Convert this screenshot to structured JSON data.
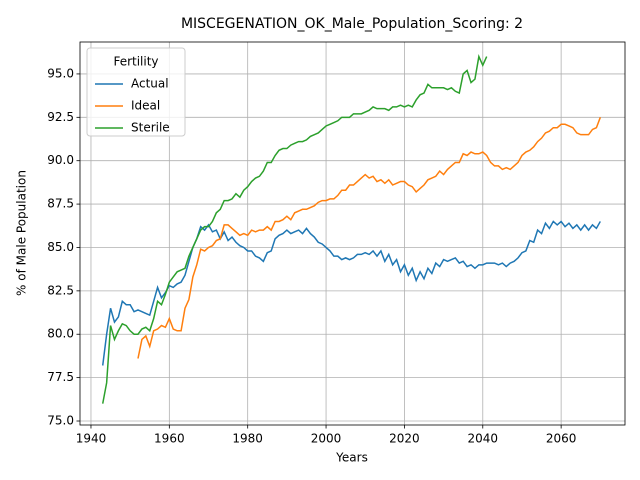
{
  "chart_data": {
    "type": "line",
    "title": "MISCEGENATION_OK_Male_Population_Scoring: 2",
    "xlabel": "Years",
    "ylabel": "% of Male Population",
    "legend_title": "Fertility",
    "legend": "upper left",
    "grid": true,
    "xlim": [
      1937.2,
      2076.3
    ],
    "ylim": [
      74.77,
      96.84
    ],
    "xticks": [
      1940,
      1960,
      1980,
      2000,
      2020,
      2040,
      2060
    ],
    "yticks": [
      {
        "value": 75,
        "label": "75.0"
      },
      {
        "value": 77.5,
        "label": "77.5"
      },
      {
        "value": 80,
        "label": "80.0"
      },
      {
        "value": 82.5,
        "label": "82.5"
      },
      {
        "value": 85,
        "label": "85.0"
      },
      {
        "value": 87.5,
        "label": "87.5"
      },
      {
        "value": 90,
        "label": "90.0"
      },
      {
        "value": 92.5,
        "label": "92.5"
      },
      {
        "value": 95,
        "label": "95.0"
      }
    ],
    "x": [
      1943,
      1944,
      1945,
      1946,
      1947,
      1948,
      1949,
      1950,
      1951,
      1952,
      1953,
      1954,
      1955,
      1956,
      1957,
      1958,
      1959,
      1960,
      1961,
      1962,
      1963,
      1964,
      1965,
      1966,
      1967,
      1968,
      1969,
      1970,
      1971,
      1972,
      1973,
      1974,
      1975,
      1976,
      1977,
      1978,
      1979,
      1980,
      1981,
      1982,
      1983,
      1984,
      1985,
      1986,
      1987,
      1988,
      1989,
      1990,
      1991,
      1992,
      1993,
      1994,
      1995,
      1996,
      1997,
      1998,
      1999,
      2000,
      2001,
      2002,
      2003,
      2004,
      2005,
      2006,
      2007,
      2008,
      2009,
      2010,
      2011,
      2012,
      2013,
      2014,
      2015,
      2016,
      2017,
      2018,
      2019,
      2020,
      2021,
      2022,
      2023,
      2024,
      2025,
      2026,
      2027,
      2028,
      2029,
      2030,
      2031,
      2032,
      2033,
      2034,
      2035,
      2036,
      2037,
      2038,
      2039,
      2040,
      2041,
      2042,
      2043,
      2044,
      2045,
      2046,
      2047,
      2048,
      2049,
      2050,
      2051,
      2052,
      2053,
      2054,
      2055,
      2056,
      2057,
      2058,
      2059,
      2060,
      2061,
      2062,
      2063,
      2064,
      2065,
      2066,
      2067,
      2068,
      2069,
      2070
    ],
    "series": [
      {
        "name": "Actual",
        "color": "#1f77b4",
        "values": [
          78.2,
          80,
          81.5,
          80.7,
          81,
          81.9,
          81.7,
          81.7,
          81.3,
          81.4,
          81.3,
          81.2,
          81.1,
          81.9,
          82.7,
          82.1,
          82.4,
          82.8,
          82.7,
          82.9,
          83.0,
          83.4,
          84.2,
          85.0,
          85.5,
          86.2,
          86.0,
          86.3,
          85.9,
          86.0,
          85.5,
          85.9,
          85.4,
          85.6,
          85.3,
          85.1,
          85.0,
          84.8,
          84.8,
          84.5,
          84.4,
          84.2,
          84.7,
          84.8,
          85.5,
          85.7,
          85.8,
          86.0,
          85.8,
          85.9,
          86.0,
          85.8,
          86.1,
          85.8,
          85.6,
          85.3,
          85.2,
          85.0,
          84.8,
          84.5,
          84.5,
          84.3,
          84.4,
          84.3,
          84.4,
          84.6,
          84.6,
          84.7,
          84.6,
          84.8,
          84.5,
          84.8,
          84.2,
          84.6,
          84.0,
          84.3,
          83.6,
          84.0,
          83.4,
          83.8,
          83.1,
          83.6,
          83.2,
          83.8,
          83.5,
          84.1,
          83.9,
          84.3,
          84.2,
          84.3,
          84.4,
          84.1,
          84.2,
          83.9,
          84.0,
          83.8,
          84.0,
          84.0,
          84.1,
          84.1,
          84.1,
          84.0,
          84.1,
          83.9,
          84.1,
          84.2,
          84.4,
          84.7,
          84.8,
          85.4,
          85.3,
          86.0,
          85.8,
          86.4,
          86.1,
          86.5,
          86.3,
          86.5,
          86.2,
          86.4,
          86.1,
          86.3,
          86.0,
          86.3,
          86.0,
          86.3,
          86.1,
          86.5
        ]
      },
      {
        "name": "Ideal",
        "color": "#ff7f0e",
        "values": [
          null,
          null,
          null,
          null,
          null,
          null,
          null,
          null,
          null,
          78.6,
          79.7,
          79.9,
          79.3,
          80.2,
          80.3,
          80.5,
          80.4,
          80.9,
          80.3,
          80.2,
          80.2,
          81.5,
          82.0,
          83.3,
          84.0,
          84.9,
          84.8,
          85.0,
          85.1,
          85.4,
          85.5,
          86.3,
          86.3,
          86.1,
          85.9,
          85.7,
          85.8,
          85.7,
          86.0,
          85.9,
          86.0,
          86.0,
          86.2,
          86.0,
          86.5,
          86.5,
          86.6,
          86.8,
          86.6,
          87.0,
          87.1,
          87.2,
          87.2,
          87.3,
          87.4,
          87.6,
          87.7,
          87.7,
          87.8,
          87.8,
          88.0,
          88.3,
          88.3,
          88.6,
          88.6,
          88.8,
          89.0,
          89.2,
          89.0,
          89.1,
          88.8,
          88.9,
          88.7,
          88.9,
          88.6,
          88.7,
          88.8,
          88.8,
          88.6,
          88.5,
          88.2,
          88.4,
          88.6,
          88.9,
          89.0,
          89.1,
          89.4,
          89.2,
          89.5,
          89.7,
          89.9,
          89.9,
          90.4,
          90.3,
          90.5,
          90.4,
          90.4,
          90.5,
          90.3,
          89.9,
          89.7,
          89.7,
          89.5,
          89.6,
          89.5,
          89.7,
          89.9,
          90.3,
          90.5,
          90.6,
          90.8,
          91.1,
          91.3,
          91.6,
          91.7,
          91.9,
          91.9,
          92.1,
          92.1,
          92.0,
          91.9,
          91.6,
          91.5,
          91.5,
          91.5,
          91.8,
          91.9,
          92.5
        ]
      },
      {
        "name": "Sterile",
        "color": "#2ca02c",
        "values": [
          76.0,
          77.2,
          80.5,
          79.7,
          80.2,
          80.6,
          80.5,
          80.2,
          80.0,
          80.0,
          80.3,
          80.4,
          80.2,
          80.9,
          81.9,
          81.7,
          82.3,
          83.0,
          83.3,
          83.6,
          83.7,
          83.8,
          84.5,
          85.0,
          85.5,
          86.0,
          86.2,
          86.2,
          86.5,
          87.0,
          87.2,
          87.7,
          87.7,
          87.8,
          88.1,
          87.9,
          88.3,
          88.5,
          88.8,
          89.0,
          89.1,
          89.4,
          89.9,
          89.9,
          90.3,
          90.6,
          90.7,
          90.7,
          90.9,
          91.0,
          91.1,
          91.1,
          91.2,
          91.4,
          91.5,
          91.6,
          91.8,
          92.0,
          92.1,
          92.2,
          92.3,
          92.5,
          92.5,
          92.5,
          92.7,
          92.7,
          92.7,
          92.8,
          92.9,
          93.1,
          93.0,
          93.0,
          93.0,
          92.9,
          93.1,
          93.1,
          93.2,
          93.1,
          93.2,
          93.1,
          93.5,
          93.8,
          93.9,
          94.4,
          94.2,
          94.2,
          94.2,
          94.2,
          94.1,
          94.2,
          94.0,
          93.9,
          95.0,
          95.2,
          94.5,
          94.7,
          96.0,
          95.5,
          96.0,
          null,
          null,
          null,
          null,
          null,
          null,
          null,
          null,
          null,
          null,
          null,
          null,
          null,
          null,
          null,
          null,
          null,
          null,
          null,
          null,
          null,
          null,
          null,
          null,
          null,
          null,
          null,
          null,
          null
        ]
      }
    ]
  }
}
